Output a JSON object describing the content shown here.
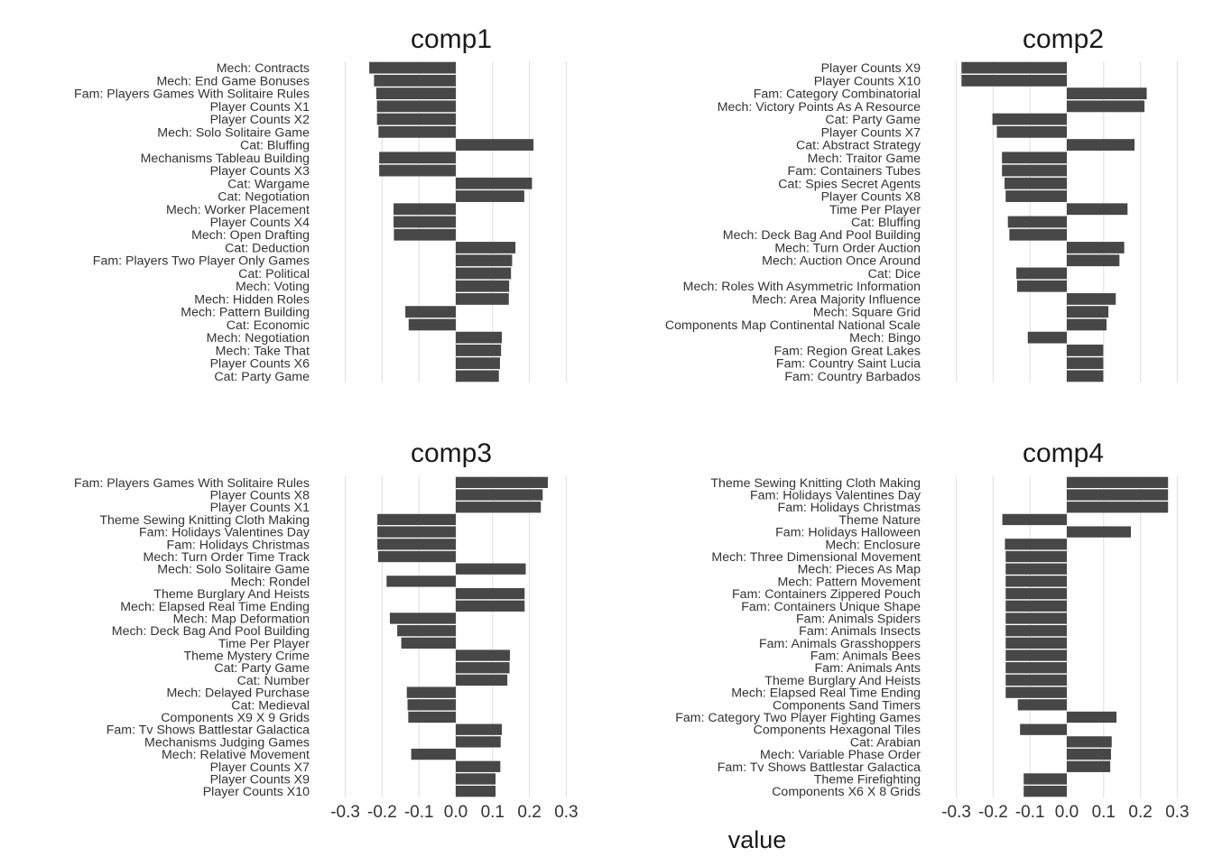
{
  "figure": {
    "xlabel": "value"
  },
  "chart_data": [
    {
      "type": "bar",
      "title": "comp1",
      "xlim": [
        -0.3,
        0.3
      ],
      "ticks": [
        "-0.3",
        "-0.2",
        "-0.1",
        "0.0",
        "0.1",
        "0.2",
        "0.3"
      ],
      "grid": true,
      "categories": [
        "Mech: Contracts",
        "Mech: End Game Bonuses",
        "Fam: Players Games With Solitaire Rules",
        "Player Counts X1",
        "Player Counts X2",
        "Mech: Solo Solitaire Game",
        "Cat: Bluffing",
        "Mechanisms Tableau Building",
        "Player Counts X3",
        "Cat: Wargame",
        "Cat: Negotiation",
        "Mech: Worker Placement",
        "Player Counts X4",
        "Mech: Open Drafting",
        "Cat: Deduction",
        "Fam: Players Two Player Only Games",
        "Cat: Political",
        "Mech: Voting",
        "Mech: Hidden Roles",
        "Mech: Pattern Building",
        "Cat: Economic",
        "Mech: Negotiation",
        "Mech: Take That",
        "Player Counts X6",
        "Cat: Party Game"
      ],
      "values": [
        -0.235,
        -0.222,
        -0.216,
        -0.214,
        -0.214,
        -0.21,
        0.211,
        -0.208,
        -0.208,
        0.207,
        0.186,
        -0.169,
        -0.169,
        -0.168,
        0.162,
        0.153,
        0.15,
        0.145,
        0.144,
        -0.137,
        -0.128,
        0.125,
        0.123,
        0.12,
        0.117
      ]
    },
    {
      "type": "bar",
      "title": "comp2",
      "xlim": [
        -0.3,
        0.3
      ],
      "ticks": [
        "-0.3",
        "-0.2",
        "-0.1",
        "0.0",
        "0.1",
        "0.2",
        "0.3"
      ],
      "grid": true,
      "categories": [
        "Player Counts X9",
        "Player Counts X10",
        "Fam: Category Combinatorial",
        "Mech: Victory Points As A Resource",
        "Cat: Party Game",
        "Player Counts X7",
        "Cat: Abstract Strategy",
        "Mech: Traitor Game",
        "Fam: Containers Tubes",
        "Cat: Spies Secret Agents",
        "Player Counts X8",
        "Time Per Player",
        "Cat: Bluffing",
        "Mech: Deck Bag And Pool Building",
        "Mech: Turn Order Auction",
        "Mech: Auction Once Around",
        "Cat: Dice",
        "Mech: Roles With Asymmetric Information",
        "Mech: Area Majority Influence",
        "Mech: Square Grid",
        "Components Map Continental National Scale",
        "Mech: Bingo",
        "Fam: Region Great Lakes",
        "Fam: Country Saint Lucia",
        "Fam: Country Barbados"
      ],
      "values": [
        -0.286,
        -0.286,
        0.217,
        0.211,
        -0.202,
        -0.19,
        0.184,
        -0.176,
        -0.176,
        -0.169,
        -0.166,
        0.165,
        -0.16,
        -0.156,
        0.156,
        0.143,
        -0.137,
        -0.135,
        0.133,
        0.113,
        0.108,
        -0.106,
        0.099,
        0.099,
        0.099
      ]
    },
    {
      "type": "bar",
      "title": "comp3",
      "xlim": [
        -0.3,
        0.3
      ],
      "ticks": [
        "-0.3",
        "-0.2",
        "-0.1",
        "0.0",
        "0.1",
        "0.2",
        "0.3"
      ],
      "grid": true,
      "categories": [
        "Fam: Players Games With Solitaire Rules",
        "Player Counts X8",
        "Player Counts X1",
        "Theme Sewing Knitting Cloth Making",
        "Fam: Holidays Valentines Day",
        "Fam: Holidays Christmas",
        "Mech: Turn Order Time Track",
        "Mech: Solo Solitaire Game",
        "Mech: Rondel",
        "Theme Burglary And Heists",
        "Mech: Elapsed Real Time Ending",
        "Mech: Map Deformation",
        "Mech: Deck Bag And Pool Building",
        "Time Per Player",
        "Theme Mystery Crime",
        "Cat: Party Game",
        "Cat: Number",
        "Mech: Delayed Purchase",
        "Cat: Medieval",
        "Components X9 X 9 Grids",
        "Fam: Tv Shows Battlestar Galactica",
        "Mechanisms Judging Games",
        "Mech: Relative Movement",
        "Player Counts X7",
        "Player Counts X9",
        "Player Counts X10"
      ],
      "values": [
        0.25,
        0.236,
        0.231,
        -0.213,
        -0.213,
        -0.213,
        -0.211,
        0.19,
        -0.188,
        0.187,
        0.187,
        -0.179,
        -0.159,
        -0.148,
        0.147,
        0.146,
        0.14,
        -0.133,
        -0.131,
        -0.129,
        0.125,
        0.122,
        -0.121,
        0.121,
        0.108,
        0.108
      ]
    },
    {
      "type": "bar",
      "title": "comp4",
      "xlim": [
        -0.3,
        0.3
      ],
      "ticks": [
        "-0.3",
        "-0.2",
        "-0.1",
        "0.0",
        "0.1",
        "0.2",
        "0.3"
      ],
      "grid": true,
      "categories": [
        "Theme Sewing Knitting Cloth Making",
        "Fam: Holidays Valentines Day",
        "Fam: Holidays Christmas",
        "Theme Nature",
        "Fam: Holidays Halloween",
        "Mech: Enclosure",
        "Mech: Three Dimensional Movement",
        "Mech: Pieces As Map",
        "Mech: Pattern Movement",
        "Fam: Containers Zippered Pouch",
        "Fam: Containers Unique Shape",
        "Fam: Animals Spiders",
        "Fam: Animals Insects",
        "Fam: Animals Grasshoppers",
        "Fam: Animals Bees",
        "Fam: Animals Ants",
        "Theme Burglary And Heists",
        "Mech: Elapsed Real Time Ending",
        "Components Sand Timers",
        "Fam: Category Two Player Fighting Games",
        "Components Hexagonal Tiles",
        "Cat: Arabian",
        "Mech: Variable Phase Order",
        "Fam: Tv Shows Battlestar Galactica",
        "Theme Firefighting",
        "Components X6 X 8 Grids"
      ],
      "values": [
        0.275,
        0.275,
        0.275,
        -0.175,
        0.174,
        -0.168,
        -0.166,
        -0.166,
        -0.166,
        -0.166,
        -0.166,
        -0.166,
        -0.166,
        -0.166,
        -0.166,
        -0.166,
        -0.166,
        -0.166,
        -0.133,
        0.135,
        -0.127,
        0.122,
        0.12,
        0.118,
        -0.117,
        -0.117
      ]
    }
  ]
}
